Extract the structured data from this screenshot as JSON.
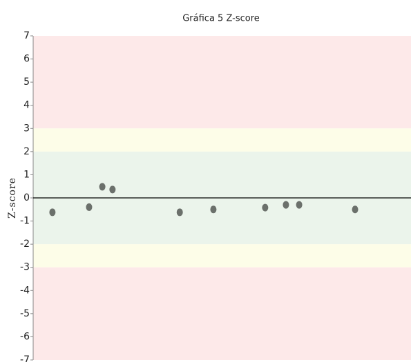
{
  "chart_data": {
    "type": "scatter",
    "title": "Gráfica 5 Z-score",
    "y_label": "Z-score",
    "x": [
      5.1,
      14.8,
      18.3,
      21.0,
      38.8,
      47.7,
      61.4,
      66.9,
      70.4,
      85.2
    ],
    "values": [
      -0.62,
      -0.4,
      0.48,
      0.36,
      -0.62,
      -0.5,
      -0.42,
      -0.3,
      -0.3,
      -0.5
    ],
    "color": "#6b706b",
    "xlim": [
      0,
      100
    ],
    "ylim": [
      -7,
      7
    ],
    "yticks": [
      -7,
      -6,
      -5,
      -4,
      -3,
      -2,
      -1,
      0,
      1,
      2,
      3,
      4,
      5,
      6,
      7
    ],
    "bands": [
      {
        "from": 3,
        "to": 7,
        "color": "#fde9e9"
      },
      {
        "from": 2,
        "to": 3,
        "color": "#fdfde8"
      },
      {
        "from": -2,
        "to": 2,
        "color": "#ebf4eb"
      },
      {
        "from": -3,
        "to": -2,
        "color": "#fdfde8"
      },
      {
        "from": -7,
        "to": -3,
        "color": "#fde9e9"
      }
    ],
    "zero_line": 0
  }
}
